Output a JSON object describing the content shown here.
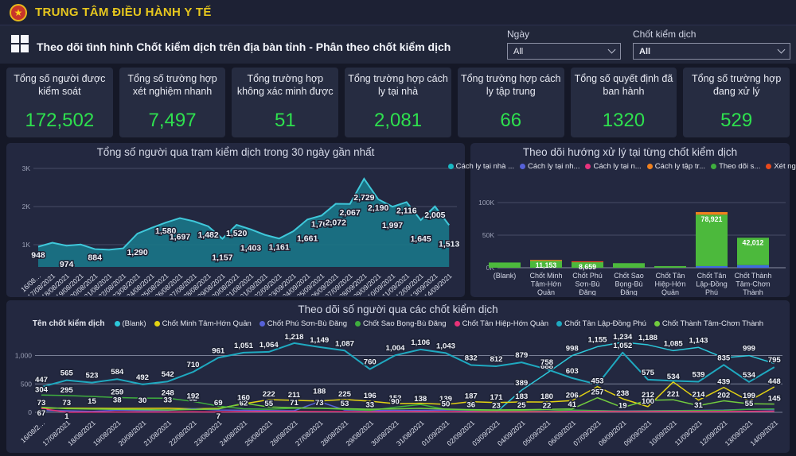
{
  "header": {
    "app_title": "TRUNG TÂM ĐIỀU HÀNH Y TẾ"
  },
  "toolbar": {
    "dashboard_title": "Theo dõi tình hình Chốt kiểm dịch trên địa bàn tỉnh - Phân theo chốt kiểm dịch",
    "filters": [
      {
        "label": "Ngày",
        "value": "All"
      },
      {
        "label": "Chốt kiểm dịch",
        "value": "All"
      }
    ]
  },
  "kpis": [
    {
      "label": "Tổng số người được kiểm soát",
      "value": "172,502"
    },
    {
      "label": "Tổng số trường hợp xét nghiệm nhanh",
      "value": "7,497"
    },
    {
      "label": "Tổng trường hợp không xác minh được",
      "value": "51"
    },
    {
      "label": "Tổng trường hợp cách ly tại nhà",
      "value": "2,081"
    },
    {
      "label": "Tổng trường hợp cách ly tập trung",
      "value": "66"
    },
    {
      "label": "Tổng số quyết định đã ban hành",
      "value": "1320"
    },
    {
      "label": "Tổng số trường hợp đang xử lý",
      "value": "529"
    }
  ],
  "colors": {
    "kpi_value": "#2ee04e",
    "accent_yellow": "#e7c71e",
    "area_fill": "#1a7487",
    "area_stroke": "#3fc8da"
  },
  "chart_data": [
    {
      "id": "daily-total-area",
      "type": "area",
      "title": "Tổng số người qua trạm kiểm dịch trong 30 ngày gần nhất",
      "x": [
        "16/08…",
        "17/08/2021",
        "18/08/2021",
        "19/08/2021",
        "20/08/2021",
        "21/08/2021",
        "22/08/2021",
        "23/08/2021",
        "24/08/2021",
        "25/08/2021",
        "26/08/2021",
        "27/08/2021",
        "28/08/2021",
        "29/08/2021",
        "30/08/2021",
        "31/08/2021",
        "01/09/2021",
        "02/09/2021",
        "03/09/2021",
        "04/09/2021",
        "05/09/2021",
        "06/09/2021",
        "07/09/2021",
        "08/09/2021",
        "09/09/2021",
        "10/09/2021",
        "11/09/2021",
        "12/09/2021",
        "13/09/2021",
        "14/09/2021"
      ],
      "values": [
        948,
        1052,
        974,
        1005,
        884,
        868,
        905,
        1290,
        1442,
        1580,
        1697,
        1612,
        1482,
        1157,
        1520,
        1403,
        1258,
        1161,
        1352,
        1661,
        1764,
        2072,
        2067,
        2729,
        2190,
        1997,
        2116,
        1645,
        2005,
        1513
      ],
      "point_labels": [
        [
          0,
          948
        ],
        [
          2,
          974
        ],
        [
          4,
          884
        ],
        [
          7,
          1290
        ],
        [
          9,
          1580
        ],
        [
          10,
          1697
        ],
        [
          12,
          1482
        ],
        [
          13,
          1157
        ],
        [
          14,
          1520
        ],
        [
          15,
          1403
        ],
        [
          17,
          1161
        ],
        [
          19,
          1661
        ],
        [
          20,
          1764
        ],
        [
          21,
          2072
        ],
        [
          22,
          2067
        ],
        [
          23,
          2729
        ],
        [
          24,
          2190
        ],
        [
          25,
          1997
        ],
        [
          26,
          2116
        ],
        [
          27,
          1645
        ],
        [
          28,
          2005
        ],
        [
          29,
          1513
        ]
      ],
      "yticks": [
        [
          1000,
          "1K"
        ],
        [
          2000,
          "2K"
        ],
        [
          3000,
          "3K"
        ]
      ],
      "ylim": [
        400,
        3000
      ]
    },
    {
      "id": "handling-by-checkpoint-bar",
      "type": "stacked-bar",
      "title": "Theo dõi hướng xử lý tại từng chốt kiểm dịch",
      "legend": [
        {
          "label": "Cách ly tại nhà ...",
          "color": "#18b8c4"
        },
        {
          "label": "Cách ly tại nh...",
          "color": "#5661d8"
        },
        {
          "label": "Cách ly tại n...",
          "color": "#e8327d"
        },
        {
          "label": "Cách ly tập tr...",
          "color": "#f0811e"
        },
        {
          "label": "Theo dõi s...",
          "color": "#3fae3e"
        },
        {
          "label": "Xét nghiệ...",
          "color": "#e8491c"
        }
      ],
      "categories": [
        "(Blank)",
        "Chốt Minh Tâm-Hớn Quản",
        "Chốt Phú Sơn-Bù Đăng",
        "Chốt Sao Bọng-Bù Đăng",
        "Chốt Tân Hiệp-Hớn Quản",
        "Chốt Tân Lập-Đồng Phú",
        "Chốt Thành Tâm-Chơn Thành"
      ],
      "category_lines": [
        [
          "(Blank)"
        ],
        [
          "Chốt Minh",
          "Tâm-Hớn",
          "Quản"
        ],
        [
          "Chốt Phú",
          "Sơn-Bù",
          "Đăng"
        ],
        [
          "Chốt Sao",
          "Bọng-Bù",
          "Đăng"
        ],
        [
          "Chốt Tân",
          "Hiệp-Hớn",
          "Quản"
        ],
        [
          "Chốt Tân",
          "Lập-Đồng",
          "Phú"
        ],
        [
          "Chốt Thành",
          "Tâm-Chơn",
          "Thành"
        ]
      ],
      "bars": [
        {
          "segments": [
            [
              "#4cb93c",
              8000
            ]
          ],
          "label": null
        },
        {
          "segments": [
            [
              "#4cb93c",
              11153
            ],
            [
              "#f0811e",
              800
            ]
          ],
          "label": 11153
        },
        {
          "segments": [
            [
              "#4cb93c",
              8659
            ],
            [
              "#e8491c",
              1200
            ]
          ],
          "label": 8659
        },
        {
          "segments": [
            [
              "#4cb93c",
              7000
            ]
          ],
          "label": null
        },
        {
          "segments": [
            [
              "#4cb93c",
              2500
            ]
          ],
          "label": null
        },
        {
          "segments": [
            [
              "#3f6ae0",
              2500
            ],
            [
              "#4cb93c",
              78921
            ],
            [
              "#f0811e",
              4000
            ]
          ],
          "label": 78921
        },
        {
          "segments": [
            [
              "#3f6ae0",
              4000
            ],
            [
              "#4cb93c",
              42012
            ]
          ],
          "label": 42012
        }
      ],
      "yticks": [
        [
          0,
          "0K"
        ],
        [
          50000,
          "50K"
        ],
        [
          100000,
          "100K"
        ]
      ],
      "ylim": [
        0,
        100000
      ]
    },
    {
      "id": "daily-by-checkpoint-line",
      "type": "line",
      "title": "Theo dõi số người qua các chốt kiểm dịch",
      "legend_title": "Tên chốt kiểm dịch",
      "x": [
        "16/08/2…",
        "17/08/2021",
        "18/08/2021",
        "19/08/2021",
        "20/08/2021",
        "21/08/2021",
        "22/08/2021",
        "23/08/2021",
        "24/08/2021",
        "25/08/2021",
        "26/08/2021",
        "27/08/2021",
        "28/08/2021",
        "29/08/2021",
        "30/08/2021",
        "31/08/2021",
        "01/09/2021",
        "02/09/2021",
        "03/09/2021",
        "04/09/2021",
        "05/09/2021",
        "06/09/2021",
        "07/09/2021",
        "08/09/2021",
        "09/09/2021",
        "10/09/2021",
        "11/09/2021",
        "12/09/2021",
        "13/09/2021",
        "14/09/2021"
      ],
      "yticks": [
        [
          0,
          "0"
        ],
        [
          500,
          "500"
        ],
        [
          1000,
          "1,000"
        ]
      ],
      "series": [
        {
          "name": "(Blank)",
          "color": "#2cc8da",
          "values": [
            null,
            null,
            null,
            null,
            null,
            null,
            null,
            null,
            null,
            null,
            null,
            null,
            null,
            null,
            null,
            null,
            null,
            null,
            0,
            389,
            688,
            998,
            1155,
            1234,
            1188,
            1085,
            1143,
            960,
            999,
            860
          ],
          "labels": [
            [
              19,
              389
            ],
            [
              20,
              688
            ],
            [
              21,
              998
            ],
            [
              22,
              1155
            ],
            [
              23,
              1234
            ],
            [
              24,
              1188
            ],
            [
              25,
              1085
            ],
            [
              26,
              1143
            ],
            [
              28,
              999
            ]
          ]
        },
        {
          "name": "Chốt Minh Tâm-Hớn Quản",
          "color": "#e3d312",
          "values": [
            73,
            73,
            70,
            68,
            70,
            72,
            62,
            69,
            148,
            222,
            211,
            200,
            225,
            196,
            152,
            159,
            139,
            187,
            171,
            183,
            180,
            206,
            453,
            238,
            100,
            534,
            214,
            439,
            199,
            448
          ],
          "labels": [
            [
              0,
              73
            ],
            [
              1,
              73
            ],
            [
              7,
              69
            ],
            [
              8,
              148
            ],
            [
              9,
              222
            ],
            [
              10,
              211
            ],
            [
              12,
              225
            ],
            [
              13,
              196
            ],
            [
              14,
              152
            ],
            [
              15,
              159
            ],
            [
              16,
              139
            ],
            [
              17,
              187
            ],
            [
              18,
              171
            ],
            [
              19,
              183
            ],
            [
              20,
              180
            ],
            [
              21,
              206
            ],
            [
              22,
              453
            ],
            [
              23,
              238
            ],
            [
              24,
              100
            ],
            [
              25,
              534
            ],
            [
              26,
              214
            ],
            [
              27,
              439
            ],
            [
              28,
              199
            ],
            [
              29,
              448
            ]
          ]
        },
        {
          "name": "Chốt Phú Sơn-Bù Đăng",
          "color": "#5661d8",
          "values": [
            30,
            28,
            15,
            38,
            30,
            33,
            62,
            40,
            35,
            30,
            28,
            188,
            40,
            30,
            35,
            35,
            40,
            30,
            25,
            28,
            24,
            35,
            30,
            25,
            28,
            30,
            35,
            40,
            55,
            45
          ],
          "labels": [
            [
              2,
              15
            ],
            [
              3,
              38
            ],
            [
              4,
              30
            ],
            [
              5,
              33
            ],
            [
              6,
              62
            ],
            [
              11,
              188
            ]
          ]
        },
        {
          "name": "Chốt Sao Bọng-Bù Đăng",
          "color": "#3fae3e",
          "values": [
            304,
            295,
            280,
            259,
            250,
            248,
            192,
            110,
            62,
            55,
            71,
            73,
            53,
            33,
            90,
            138,
            50,
            36,
            23,
            25,
            22,
            41,
            30,
            19,
            25,
            30,
            31,
            35,
            55,
            60
          ],
          "labels": [
            [
              0,
              304
            ],
            [
              1,
              295
            ],
            [
              3,
              259
            ],
            [
              5,
              248
            ],
            [
              6,
              192
            ],
            [
              8,
              62
            ],
            [
              9,
              55
            ],
            [
              10,
              71
            ],
            [
              11,
              73
            ],
            [
              12,
              53
            ],
            [
              13,
              33
            ],
            [
              14,
              90
            ],
            [
              15,
              138
            ],
            [
              16,
              50
            ],
            [
              17,
              36
            ],
            [
              18,
              23
            ],
            [
              19,
              25
            ],
            [
              20,
              22
            ],
            [
              21,
              41
            ],
            [
              23,
              19
            ],
            [
              26,
              31
            ],
            [
              28,
              55
            ]
          ]
        },
        {
          "name": "Chốt Tân Hiệp-Hớn Quản",
          "color": "#e83278",
          "values": [
            67,
            1,
            4,
            6,
            5,
            5,
            8,
            7,
            12,
            18,
            15,
            12,
            10,
            9,
            12,
            15,
            12,
            10,
            8,
            9,
            10,
            12,
            15,
            12,
            14,
            16,
            12,
            14,
            18,
            20
          ],
          "labels": [
            [
              0,
              67
            ],
            [
              1,
              1
            ],
            [
              7,
              7
            ]
          ]
        },
        {
          "name": "Chốt Tân Lập-Đồng Phú",
          "color": "#1fa9c0",
          "values": [
            447,
            565,
            523,
            584,
            492,
            542,
            710,
            961,
            1051,
            1064,
            1218,
            1149,
            1087,
            760,
            1004,
            1106,
            1043,
            832,
            812,
            879,
            758,
            603,
            490,
            1052,
            575,
            555,
            539,
            835,
            534,
            795
          ],
          "labels": [
            [
              0,
              447
            ],
            [
              1,
              565
            ],
            [
              2,
              523
            ],
            [
              3,
              584
            ],
            [
              4,
              492
            ],
            [
              5,
              542
            ],
            [
              6,
              710
            ],
            [
              7,
              961
            ],
            [
              8,
              1051
            ],
            [
              9,
              1064
            ],
            [
              10,
              1218
            ],
            [
              11,
              1149
            ],
            [
              12,
              1087
            ],
            [
              13,
              760
            ],
            [
              14,
              1004
            ],
            [
              15,
              1106
            ],
            [
              16,
              1043
            ],
            [
              17,
              832
            ],
            [
              18,
              812
            ],
            [
              19,
              879
            ],
            [
              20,
              758
            ],
            [
              21,
              603
            ],
            [
              23,
              1052
            ],
            [
              24,
              575
            ],
            [
              26,
              539
            ],
            [
              27,
              835
            ],
            [
              28,
              534
            ],
            [
              29,
              795
            ]
          ]
        },
        {
          "name": "Chốt Thành Tâm-Chơn Thành",
          "color": "#72cc3e",
          "values": [
            90,
            65,
            58,
            52,
            48,
            42,
            50,
            58,
            160,
            95,
            80,
            72,
            64,
            55,
            62,
            70,
            58,
            48,
            42,
            46,
            52,
            60,
            257,
            85,
            212,
            221,
            118,
            202,
            150,
            145
          ],
          "labels": [
            [
              8,
              160
            ],
            [
              22,
              257
            ],
            [
              24,
              212
            ],
            [
              25,
              221
            ],
            [
              27,
              202
            ],
            [
              29,
              145
            ]
          ]
        }
      ]
    }
  ]
}
